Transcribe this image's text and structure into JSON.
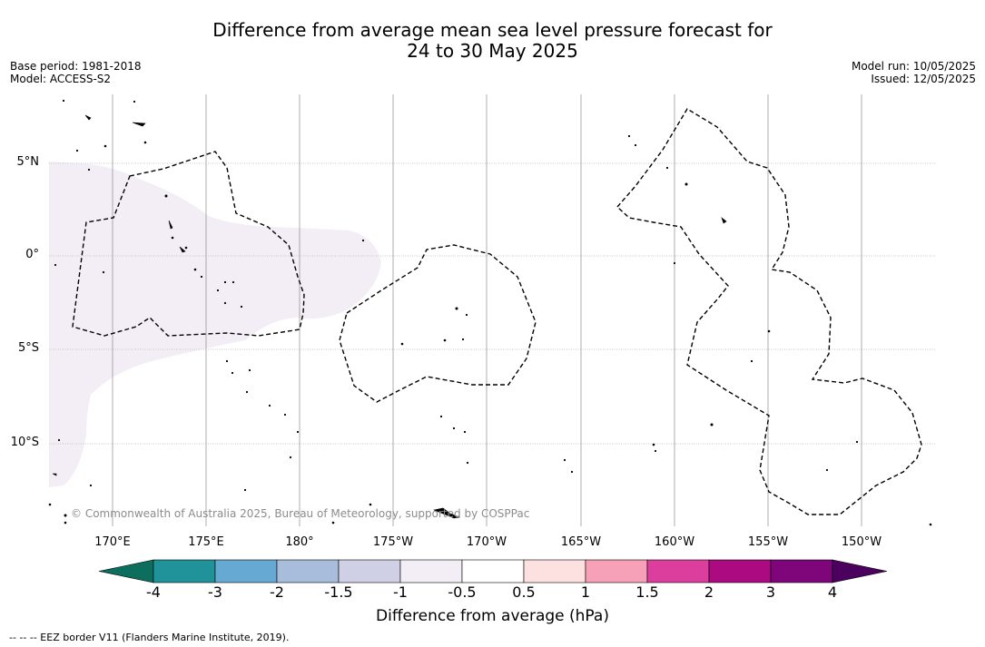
{
  "title": {
    "line1": "Difference from average mean sea level pressure forecast for",
    "line2": "24 to 30 May 2025"
  },
  "meta_left": {
    "base_period": "Base period: 1981-2018",
    "model": "Model: ACCESS-S2"
  },
  "meta_right": {
    "model_run": "Model run: 10/05/2025",
    "issued": "Issued: 12/05/2025"
  },
  "map": {
    "lat_labels": [
      "5°N",
      "0°",
      "5°S",
      "10°S"
    ],
    "lon_labels": [
      "170°E",
      "175°E",
      "180°",
      "175°W",
      "170°W",
      "165°W",
      "160°W",
      "155°W",
      "150°W"
    ],
    "anomaly_fill_color": "#f3eef5",
    "gridlines": true
  },
  "colorbar": {
    "ticks": [
      "-4",
      "-3",
      "-2",
      "-1.5",
      "-1",
      "-0.5",
      "0.5",
      "1",
      "1.5",
      "2",
      "3",
      "4"
    ],
    "colors": [
      "#0e6e5e",
      "#1f9399",
      "#66a9d2",
      "#a8bcdc",
      "#cfd0e6",
      "#f3eef5",
      "#ffffff",
      "#fde1e1",
      "#f7a1b8",
      "#db3e9d",
      "#ac0a80",
      "#7f057a",
      "#4c015f"
    ],
    "label": "Difference from average (hPa)"
  },
  "copyright": "© Commonwealth of Australia 2025, Bureau of Meteorology, supported by COSPPac",
  "footnote": "--  --  -- EEZ border V11 (Flanders Marine Institute, 2019)."
}
